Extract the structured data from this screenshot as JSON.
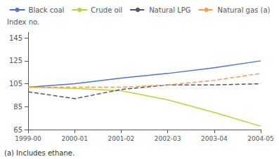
{
  "chart_data": {
    "type": "line",
    "categories": [
      "1999-00",
      "2000-01",
      "2001-02",
      "2002-03",
      "2003-04",
      "2004-05"
    ],
    "series": [
      {
        "name": "Black coal",
        "values": [
          102,
          105,
          110,
          114,
          119,
          125
        ],
        "line_style": "solid"
      },
      {
        "name": "Crude oil",
        "values": [
          102,
          101,
          99,
          91,
          80,
          68
        ],
        "line_style": "solid"
      },
      {
        "name": "Natural LPG",
        "values": [
          98,
          92,
          100,
          104,
          104,
          105
        ],
        "line_style": "dashed"
      },
      {
        "name": "Natural gas (a)",
        "values": [
          102,
          102,
          102,
          104,
          108,
          114
        ],
        "line_style": "dashed"
      }
    ],
    "ylabel": "Index no.",
    "ylim": [
      65,
      150
    ],
    "yticks": [
      65,
      85,
      105,
      125,
      145
    ],
    "footnote": "(a) Includes ethane.",
    "legend": "top",
    "grid": false
  }
}
